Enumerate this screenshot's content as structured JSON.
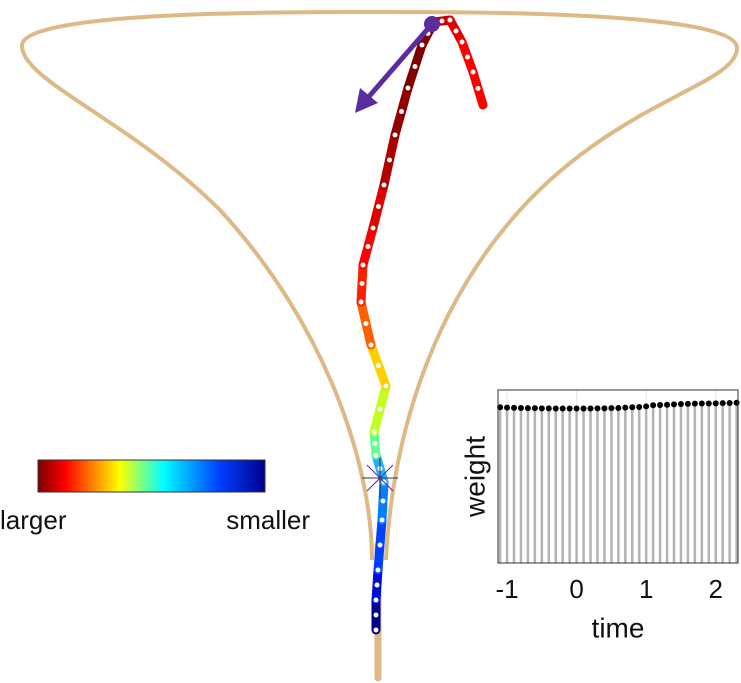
{
  "colorbar": {
    "left_label": "larger",
    "right_label": "smaller"
  },
  "chart_data": {
    "type": "stem",
    "xlabel": "time",
    "ylabel": "weight",
    "x": [
      -1.1,
      -1.0,
      -0.9,
      -0.8,
      -0.7,
      -0.6,
      -0.5,
      -0.4,
      -0.3,
      -0.2,
      -0.1,
      0.0,
      0.1,
      0.2,
      0.3,
      0.4,
      0.5,
      0.6,
      0.7,
      0.8,
      0.9,
      1.0,
      1.1,
      1.2,
      1.3,
      1.4,
      1.5,
      1.6,
      1.7,
      1.8,
      1.9,
      2.0,
      2.1,
      2.2,
      2.3
    ],
    "values": [
      0.9,
      0.898,
      0.897,
      0.896,
      0.895,
      0.895,
      0.894,
      0.894,
      0.893,
      0.893,
      0.893,
      0.893,
      0.893,
      0.893,
      0.894,
      0.894,
      0.895,
      0.896,
      0.898,
      0.9,
      0.902,
      0.905,
      0.912,
      0.913,
      0.915,
      0.917,
      0.919,
      0.92,
      0.921,
      0.922,
      0.922,
      0.923,
      0.924,
      0.925,
      0.926
    ],
    "xlim": [
      -1.13,
      2.32
    ],
    "ylim": [
      0,
      1
    ],
    "xticks": [
      -1,
      0,
      1,
      2
    ],
    "stem_color": "#b3b3b3",
    "marker_color": "#000000",
    "grid": true
  }
}
